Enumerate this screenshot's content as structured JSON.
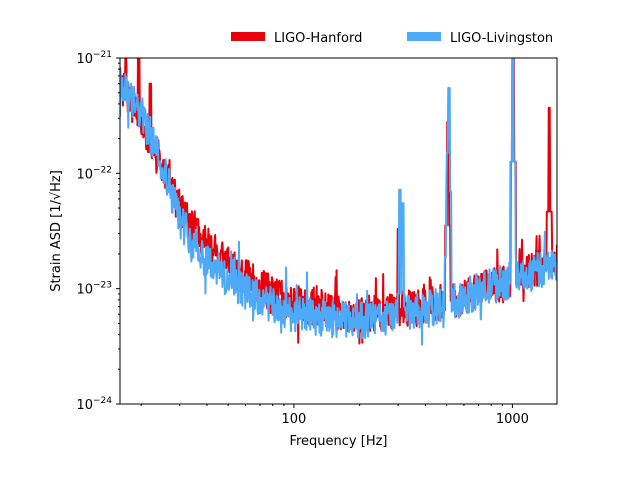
{
  "chart_data": {
    "type": "line",
    "xlabel": "Frequency [Hz]",
    "ylabel": "Strain ASD [1/√Hz]",
    "xscale": "log",
    "yscale": "log",
    "xlim": [
      16,
      1600
    ],
    "ylim": [
      1e-24,
      1e-21
    ],
    "x_ticks": [
      {
        "value": 100,
        "label": "100"
      },
      {
        "value": 1000,
        "label": "1000"
      }
    ],
    "y_ticks": [
      {
        "value": 1e-24,
        "base": "10",
        "exp": "−24"
      },
      {
        "value": 1e-23,
        "base": "10",
        "exp": "−23"
      },
      {
        "value": 1e-22,
        "base": "10",
        "exp": "−22"
      },
      {
        "value": 1e-21,
        "base": "10",
        "exp": "−21"
      }
    ],
    "grid": false,
    "legend_position": "top-right, outside above plot",
    "series": [
      {
        "name": "LIGO-Hanford",
        "color": "#e8000b",
        "baseline": [
          [
            16,
            6e-22
          ],
          [
            20,
            2.8e-22
          ],
          [
            25,
            1.1e-22
          ],
          [
            30,
            5e-23
          ],
          [
            35,
            3.3e-23
          ],
          [
            40,
            2.4e-23
          ],
          [
            50,
            1.6e-23
          ],
          [
            60,
            1.25e-23
          ],
          [
            70,
            1.05e-23
          ],
          [
            80,
            9e-24
          ],
          [
            100,
            7.5e-24
          ],
          [
            130,
            6.5e-24
          ],
          [
            160,
            6.2e-24
          ],
          [
            200,
            6e-24
          ],
          [
            250,
            6.2e-24
          ],
          [
            300,
            6.5e-24
          ],
          [
            400,
            7e-24
          ],
          [
            500,
            7.8e-24
          ],
          [
            600,
            8.5e-24
          ],
          [
            700,
            9.5e-24
          ],
          [
            800,
            1.05e-23
          ],
          [
            1000,
            1.2e-23
          ],
          [
            1200,
            1.4e-23
          ],
          [
            1400,
            1.6e-23
          ],
          [
            1600,
            1.8e-23
          ]
        ],
        "peaks": [
          {
            "f": 17,
            "value": 1e-21
          },
          {
            "f": 19.5,
            "value": 1e-21
          },
          {
            "f": 22,
            "value": 6e-22
          },
          {
            "f": 300,
            "value": 3.3e-23
          },
          {
            "f": 507,
            "value": 2.8e-22
          },
          {
            "f": 1008,
            "value": 1e-21
          },
          {
            "f": 1475,
            "value": 3.7e-22
          }
        ]
      },
      {
        "name": "LIGO-Livingston",
        "color": "#4daaf9",
        "baseline": [
          [
            16,
            5.8e-22
          ],
          [
            20,
            3.3e-22
          ],
          [
            25,
            1.2e-22
          ],
          [
            30,
            4e-23
          ],
          [
            35,
            2.5e-23
          ],
          [
            40,
            1.8e-23
          ],
          [
            50,
            1.2e-23
          ],
          [
            60,
            9.5e-24
          ],
          [
            70,
            8e-24
          ],
          [
            80,
            7e-24
          ],
          [
            100,
            6e-24
          ],
          [
            130,
            5.6e-24
          ],
          [
            160,
            5.4e-24
          ],
          [
            200,
            5.3e-24
          ],
          [
            250,
            5.5e-24
          ],
          [
            300,
            5.8e-24
          ],
          [
            400,
            6.5e-24
          ],
          [
            500,
            7.5e-24
          ],
          [
            600,
            8.5e-24
          ],
          [
            700,
            9.5e-24
          ],
          [
            800,
            1.05e-23
          ],
          [
            1000,
            1.2e-23
          ],
          [
            1200,
            1.35e-23
          ],
          [
            1400,
            1.5e-23
          ],
          [
            1600,
            1.6e-23
          ]
        ],
        "peaks": [
          {
            "f": 306,
            "value": 7.2e-23
          },
          {
            "f": 315,
            "value": 5.5e-23
          },
          {
            "f": 503,
            "value": 1.5e-22
          },
          {
            "f": 512,
            "value": 5.5e-22
          },
          {
            "f": 1005,
            "value": 1e-21
          }
        ]
      }
    ]
  }
}
